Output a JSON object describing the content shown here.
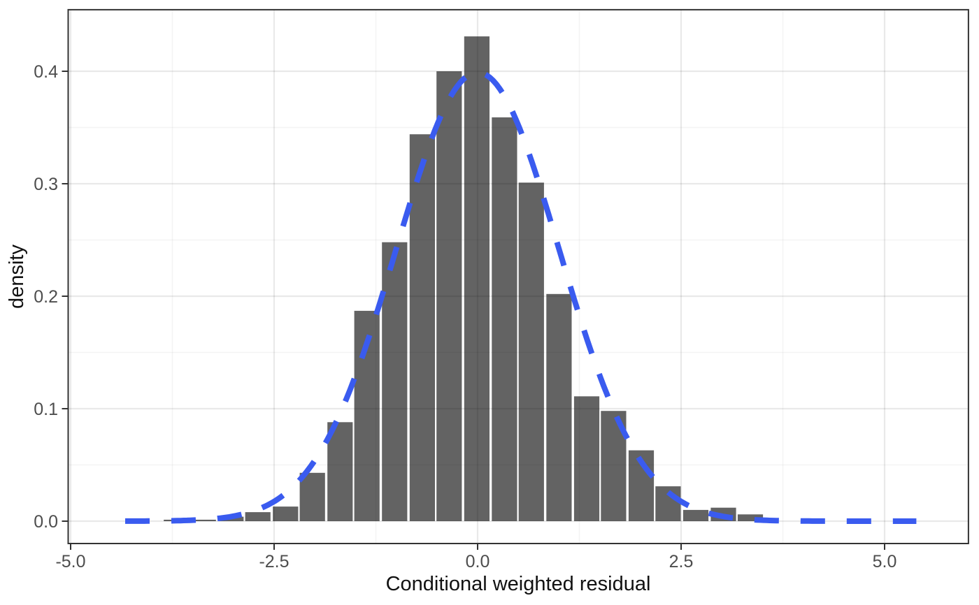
{
  "chart_data": {
    "type": "bar",
    "subtype": "histogram-with-density-curve",
    "title": "",
    "xlabel": "Conditional weighted residual",
    "ylabel": "density",
    "x_ticks": {
      "values": [
        -5.0,
        -2.5,
        0.0,
        2.5,
        5.0
      ],
      "labels": [
        "-5.0",
        "-2.5",
        "0.0",
        "2.5",
        "5.0"
      ]
    },
    "x_minor_ticks": [
      -3.75,
      -1.25,
      1.25,
      3.75
    ],
    "y_ticks": {
      "values": [
        0.0,
        0.1,
        0.2,
        0.3,
        0.4
      ],
      "labels": [
        "0.0",
        "0.1",
        "0.2",
        "0.3",
        "0.4"
      ]
    },
    "y_minor_ticks": [
      0.05,
      0.15,
      0.25,
      0.35
    ],
    "x_range": [
      -5.03,
      6.03
    ],
    "y_range": [
      -0.0199,
      0.4547
    ],
    "grid": true,
    "legend_position": "none",
    "bin_width": 0.3365,
    "bars": {
      "centers": [
        -3.7,
        -3.37,
        -3.03,
        -2.7,
        -2.36,
        -2.03,
        -1.69,
        -1.36,
        -1.02,
        -0.68,
        -0.35,
        -0.01,
        0.33,
        0.66,
        1.0,
        1.34,
        1.67,
        2.01,
        2.34,
        2.68,
        3.02,
        3.35
      ],
      "densities": [
        0.0013,
        0.0013,
        0.004,
        0.008,
        0.013,
        0.043,
        0.088,
        0.187,
        0.248,
        0.344,
        0.4,
        0.431,
        0.359,
        0.301,
        0.202,
        0.111,
        0.098,
        0.063,
        0.031,
        0.01,
        0.012,
        0.006
      ]
    },
    "curve": {
      "name": "normal-density",
      "distribution": "normal",
      "mean": 0,
      "sd": 1,
      "x_min": -4.33,
      "x_max": 5.41,
      "peak_density": 0.399,
      "line_style": "dashed"
    },
    "colors": {
      "bar_fill": "#636363",
      "curve": "#3a5bef",
      "grid_major": "#ebebeb",
      "grid_minor": "#f5f5f5",
      "panel_border": "#333333",
      "tick_mark": "#333333",
      "tick_label": "#4d4d4d",
      "axis_title": "#111111",
      "background": "#ffffff"
    }
  }
}
